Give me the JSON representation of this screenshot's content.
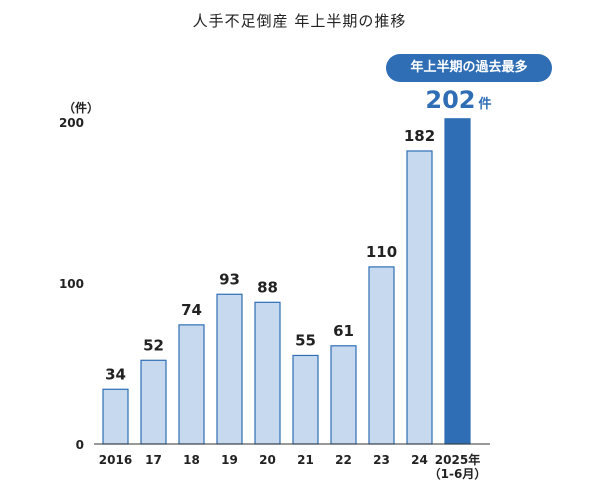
{
  "chart_data": {
    "type": "bar",
    "title": "人手不足倒産 年上半期の推移",
    "unit_label": "（件）",
    "categories": [
      "2016",
      "17",
      "18",
      "19",
      "20",
      "21",
      "22",
      "23",
      "24",
      "2025年"
    ],
    "category_sublabels": [
      "",
      "",
      "",
      "",
      "",
      "",
      "",
      "",
      "",
      "（1-6月）"
    ],
    "values": [
      34,
      52,
      74,
      93,
      88,
      55,
      61,
      110,
      182,
      202
    ],
    "highlight_index": 9,
    "highlight_value_suffix": "件",
    "highlight_badge": "年上半期の過去最多",
    "yticks": [
      0,
      100,
      200
    ],
    "ylim": [
      0,
      200
    ],
    "grid": false,
    "colors": {
      "bar_fill": "#c6d9ef",
      "bar_stroke": "#2f6eb5",
      "highlight_fill": "#2f6eb5",
      "axis": "#333333"
    }
  }
}
